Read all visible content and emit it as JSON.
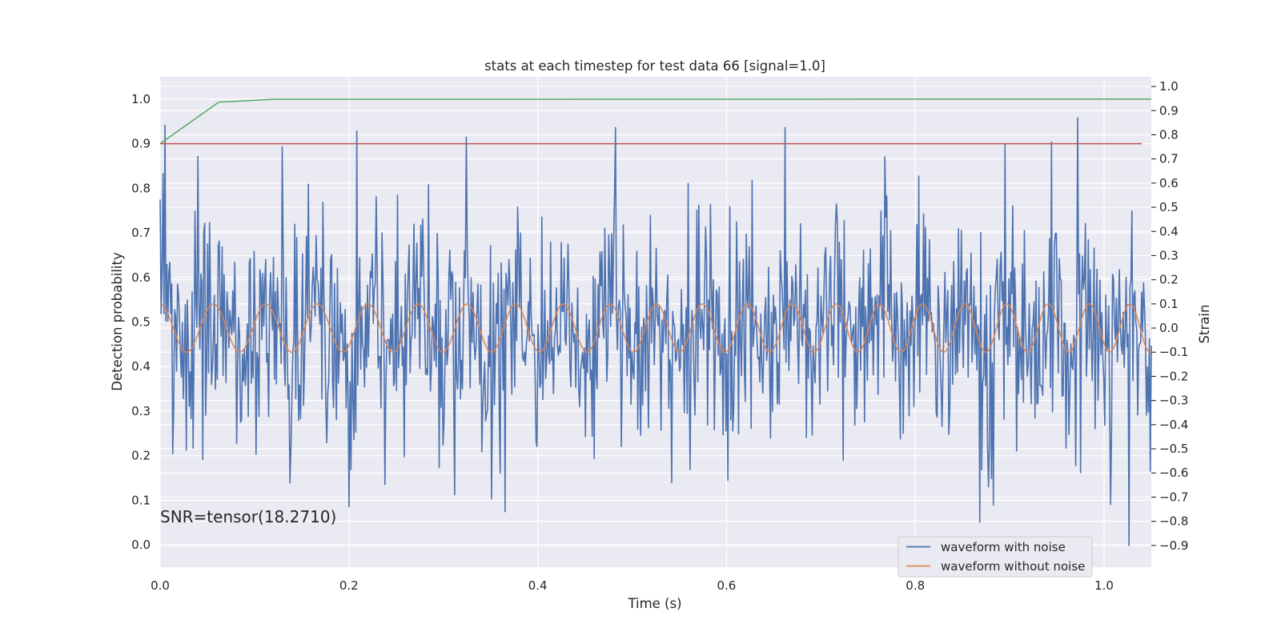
{
  "colors": {
    "background": "#eaeaf2",
    "grid": "#ffffff",
    "noisy": "#4c72b0",
    "clean": "#dd8452",
    "probability": "#55a868",
    "threshold": "#c44e52"
  },
  "chart_data": {
    "type": "line",
    "title": "stats at each timestep for test data 66 [signal=1.0]",
    "xlabel": "Time (s)",
    "ylabel_left": "Detection probability",
    "ylabel_right": "Strain",
    "xlim": [
      0.0,
      1.05
    ],
    "ylim_left": [
      -0.05,
      1.05
    ],
    "ylim_right": [
      -0.99,
      1.04
    ],
    "x_ticks": [
      0.0,
      0.2,
      0.4,
      0.6,
      0.8,
      1.0
    ],
    "x_tick_labels": [
      "0.0",
      "0.2",
      "0.4",
      "0.6",
      "0.8",
      "1.0"
    ],
    "y_ticks_left": [
      0.0,
      0.1,
      0.2,
      0.3,
      0.4,
      0.5,
      0.6,
      0.7,
      0.8,
      0.9,
      1.0
    ],
    "y_tick_labels_left": [
      "0.0",
      "0.1",
      "0.2",
      "0.3",
      "0.4",
      "0.5",
      "0.6",
      "0.7",
      "0.8",
      "0.9",
      "1.0"
    ],
    "y_ticks_right": [
      -0.9,
      -0.8,
      -0.7,
      -0.6,
      -0.5,
      -0.4,
      -0.3,
      -0.2,
      -0.1,
      0.0,
      0.1,
      0.2,
      0.3,
      0.4,
      0.5,
      0.6,
      0.7,
      0.8,
      0.9,
      1.0
    ],
    "y_tick_labels_right": [
      "−0.9",
      "−0.8",
      "−0.7",
      "−0.6",
      "−0.5",
      "−0.4",
      "−0.3",
      "−0.2",
      "−0.1",
      "0.0",
      "0.1",
      "0.2",
      "0.3",
      "0.4",
      "0.5",
      "0.6",
      "0.7",
      "0.8",
      "0.9",
      "1.0"
    ],
    "grid": true,
    "legend_position": "bottom-right",
    "annotation": "SNR=tensor(18.2710)",
    "series": [
      {
        "name": "waveform with noise",
        "axis": "right",
        "style": "noise",
        "x_start": 0.0,
        "x_end": 1.05,
        "samples": 1024,
        "seed": 66,
        "std": 0.22,
        "tracks_clean": true,
        "peaks": [
          {
            "x": 0.482,
            "y": 0.83
          },
          {
            "x": 0.662,
            "y": 0.83
          },
          {
            "x": 0.972,
            "y": 0.87
          },
          {
            "x": 0.944,
            "y": 0.77
          },
          {
            "x": 0.129,
            "y": 0.75
          },
          {
            "x": 0.04,
            "y": 0.71
          },
          {
            "x": 0.365,
            "y": -0.76
          },
          {
            "x": 0.312,
            "y": -0.69
          },
          {
            "x": 0.601,
            "y": -0.63
          },
          {
            "x": 0.2,
            "y": -0.74
          },
          {
            "x": 1.026,
            "y": -0.9
          },
          {
            "x": 1.007,
            "y": -0.73
          }
        ]
      },
      {
        "name": "waveform without noise",
        "axis": "right",
        "style": "chirp",
        "x_start": 0.0,
        "x_end": 1.05,
        "samples": 1200,
        "amplitude": 0.1,
        "freq_start": 17.5,
        "freq_end": 23.5,
        "phase": 1.6
      },
      {
        "axis": "left",
        "style": "line",
        "x": [
          0.0,
          0.062,
          0.12,
          1.05
        ],
        "y": [
          0.9,
          0.993,
          0.9995,
          1.0
        ]
      },
      {
        "axis": "left",
        "style": "line",
        "x": [
          0.0,
          1.04
        ],
        "y": [
          0.9,
          0.9
        ]
      }
    ]
  }
}
